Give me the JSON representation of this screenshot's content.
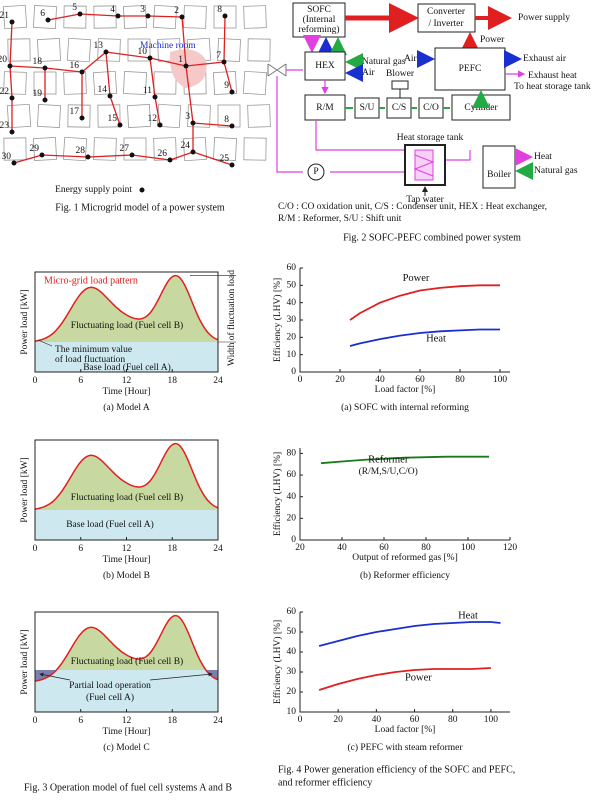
{
  "fig1": {
    "nodes": [
      "21",
      "6",
      "5",
      "4",
      "3",
      "2",
      "8",
      "20",
      "18",
      "16",
      "13",
      "10",
      "1",
      "7",
      "9",
      "22",
      "19",
      "17",
      "14",
      "15",
      "11",
      "12",
      "3",
      "8",
      "23",
      "30",
      "29",
      "28",
      "27",
      "26",
      "24",
      "25"
    ],
    "machine_room": "Machine room",
    "legend": "Energy supply point",
    "caption": "Fig. 1  Microgrid model of a power system"
  },
  "fig2": {
    "sofc": [
      "SOFC",
      "(Internal",
      "reforming)"
    ],
    "converter": [
      "Converter",
      "/ Inverter"
    ],
    "power_supply": "Power supply",
    "power": "Power",
    "hex": "HEX",
    "natural_gas": "Natural gas",
    "air": "Air",
    "pefc": "PEFC",
    "air_in": "Air",
    "exhaust_air": "Exhaust air",
    "exhaust_heat": "Exhaust heat",
    "to_tank": "To heat storage tank",
    "blower": "Blower",
    "rm": "R/M",
    "su": "S/U",
    "cs": "C/S",
    "co": "C/O",
    "cylinder": "Cylinder",
    "tank": "Heat storage tank",
    "pump": "P",
    "tap_water": "Tap water",
    "boiler": "Boiler",
    "heat": "Heat",
    "natural_gas_boiler": "Natural gas",
    "notes": [
      "C/O : CO oxidation unit, C/S : Condenser unit, HEX : Heat exchanger,",
      "R/M : Reformer, S/U : Shift unit"
    ],
    "caption": "Fig. 2  SOFC-PEFC combined power system"
  },
  "fig3": {
    "panels": [
      {
        "ylabel": "Power load [kW]",
        "xlabel": "Time [Hour]",
        "xlim": [
          0,
          24
        ],
        "xticks": [
          0,
          6,
          12,
          18,
          24
        ],
        "sub": "(a) Model A",
        "pattern": "Micro-grid load pattern",
        "width": "Width of fluctuation load",
        "fluct": "Fluctuating load (Fuel cell B)",
        "minimum": [
          "The minimum value",
          "of load fluctuation"
        ],
        "base": "Base load (Fuel cell A)"
      },
      {
        "ylabel": "Power load [kW]",
        "xlabel": "Time [Hour]",
        "xlim": [
          0,
          24
        ],
        "xticks": [
          0,
          6,
          12,
          18,
          24
        ],
        "sub": "(b) Model B",
        "fluct": "Fluctuating load (Fuel cell B)",
        "base": "Base load (Fuel cell A)"
      },
      {
        "ylabel": "Power load [kW]",
        "xlabel": "Time [Hour]",
        "xlim": [
          0,
          24
        ],
        "xticks": [
          0,
          6,
          12,
          18,
          24
        ],
        "sub": "(c) Model C",
        "fluct": "Fluctuating load (Fuel cell B)",
        "partial": [
          "Partial load operation",
          "(Fuel cell A)"
        ]
      }
    ],
    "caption": "Fig. 3  Operation model of fuel cell systems A and B"
  },
  "fig4": {
    "panels": [
      {
        "ylabel": "Efficiency (LHV) [%]",
        "xlabel": "Load factor  [%]",
        "sub": "(a) SOFC with internal reforming",
        "xlim": [
          0,
          105
        ],
        "ylim": [
          0,
          60
        ],
        "xticks": [
          0,
          20,
          40,
          60,
          80,
          100
        ],
        "yticks": [
          0,
          10,
          20,
          30,
          40,
          50,
          60
        ],
        "series": [
          {
            "name": "Power",
            "color": "#e02020",
            "x": [
              25,
              30,
              40,
              50,
              60,
              70,
              80,
              90,
              100
            ],
            "values": [
              30,
              34,
              40,
              44,
              47,
              48.5,
              49.5,
              50,
              50
            ]
          },
          {
            "name": "Heat",
            "color": "#1a2fd0",
            "x": [
              25,
              30,
              40,
              50,
              60,
              70,
              80,
              90,
              100
            ],
            "values": [
              15,
              16.5,
              19,
              21,
              22.5,
              23.5,
              24,
              24.5,
              24.5
            ]
          }
        ]
      },
      {
        "ylabel": "Efficiency (LHV) [%]",
        "xlabel": "Output of reformed gas [%]",
        "sub": "(b) Reformer efficiency",
        "xlim": [
          20,
          120
        ],
        "ylim": [
          0,
          85
        ],
        "xticks": [
          20,
          40,
          60,
          80,
          100,
          120
        ],
        "yticks": [
          0,
          20,
          40,
          60,
          80
        ],
        "series": [
          {
            "name": "Reformer",
            "detail": "(R/M,S/U,C/O)",
            "color": "#1a7a1a",
            "x": [
              30,
              40,
              50,
              60,
              70,
              80,
              90,
              100,
              110
            ],
            "values": [
              71,
              72.5,
              74,
              75,
              76,
              76.5,
              77,
              77,
              77
            ]
          }
        ]
      },
      {
        "ylabel": "Efficiency (LHV) [%]",
        "xlabel": "Load factor  [%]",
        "sub": "(c) PEFC with steam reformer",
        "xlim": [
          0,
          110
        ],
        "ylim": [
          10,
          60
        ],
        "xticks": [
          0,
          20,
          40,
          60,
          80,
          100
        ],
        "yticks": [
          10,
          20,
          30,
          40,
          50,
          60
        ],
        "series": [
          {
            "name": "Heat",
            "color": "#1a2fd0",
            "x": [
              10,
              20,
              30,
              40,
              50,
              60,
              70,
              80,
              90,
              100,
              105
            ],
            "values": [
              43,
              45.5,
              48,
              50,
              51.5,
              53,
              54,
              54.5,
              55,
              55,
              54.5
            ]
          },
          {
            "name": "Power",
            "color": "#e02020",
            "x": [
              10,
              20,
              30,
              40,
              50,
              60,
              70,
              80,
              90,
              100
            ],
            "values": [
              21,
              24,
              26.5,
              28.5,
              30,
              31,
              31.5,
              31.5,
              31.5,
              32
            ]
          }
        ]
      }
    ],
    "caption": [
      "Fig. 4  Power generation efficiency of the SOFC and PEFC,",
      "and reformer efficiency"
    ]
  }
}
